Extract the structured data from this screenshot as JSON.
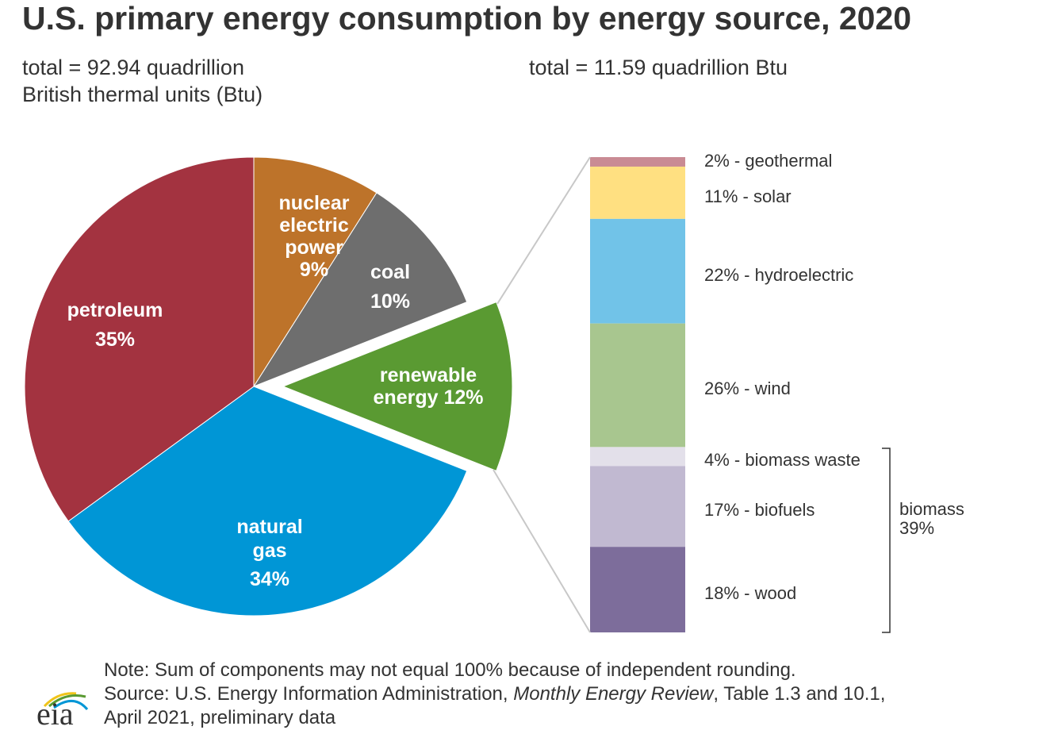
{
  "chart_data": [
    {
      "type": "pie",
      "title": "U.S. primary energy consumption by energy source, 2020",
      "subtitle": "total = 92.94 quadrillion British thermal units (Btu)",
      "subtitle_lines": [
        "total = 92.94 quadrillion",
        "British thermal units (Btu)"
      ],
      "slices": [
        {
          "name": "nuclear electric power",
          "label_lines": [
            "nuclear",
            "electric",
            "power",
            "9%"
          ],
          "value": 9,
          "color": "#bd732a"
        },
        {
          "name": "coal",
          "label_lines": [
            "coal",
            "10%"
          ],
          "value": 10,
          "color": "#6e6e6e"
        },
        {
          "name": "renewable energy",
          "label_lines": [
            "renewable",
            "energy 12%"
          ],
          "value": 12,
          "color": "#5a9a32",
          "exploded": true
        },
        {
          "name": "natural gas",
          "label_lines": [
            "natural",
            "gas",
            "34%"
          ],
          "value": 34,
          "color": "#0096d6"
        },
        {
          "name": "petroleum",
          "label_lines": [
            "petroleum",
            "35%"
          ],
          "value": 35,
          "color": "#a33340"
        }
      ],
      "start": "top",
      "direction": "clockwise"
    },
    {
      "type": "stacked-bar",
      "subtitle": "total = 11.59 quadrillion Btu",
      "segments": [
        {
          "name": "geothermal",
          "value": 2,
          "label": "2% - geothermal",
          "color": "#c98b94"
        },
        {
          "name": "solar",
          "value": 11,
          "label": "11% - solar",
          "color": "#ffe081"
        },
        {
          "name": "hydroelectric",
          "value": 22,
          "label": "22% - hydroelectric",
          "color": "#71c3e8"
        },
        {
          "name": "wind",
          "value": 26,
          "label": "26% - wind",
          "color": "#a8c68f"
        },
        {
          "name": "biomass waste",
          "value": 4,
          "label": "4% - biomass waste",
          "color": "#e3e0ea"
        },
        {
          "name": "biofuels",
          "value": 17,
          "label": "17% - biofuels",
          "color": "#c1b9d1"
        },
        {
          "name": "wood",
          "value": 18,
          "label": "18% - wood",
          "color": "#7d6d9b"
        }
      ],
      "group": {
        "label_lines": [
          "biomass",
          "39%"
        ],
        "value": 39,
        "members": [
          "biomass waste",
          "biofuels",
          "wood"
        ]
      }
    }
  ],
  "footer": {
    "note": "Note: Sum of components may not equal 100% because of independent rounding.",
    "source_prefix": "Source: U.S. Energy Information Administration, ",
    "source_title": "Monthly Energy Review",
    "source_suffix": ", Table 1.3 and 10.1,",
    "source_line2": "April 2021, preliminary data",
    "logo_text": "eia"
  }
}
